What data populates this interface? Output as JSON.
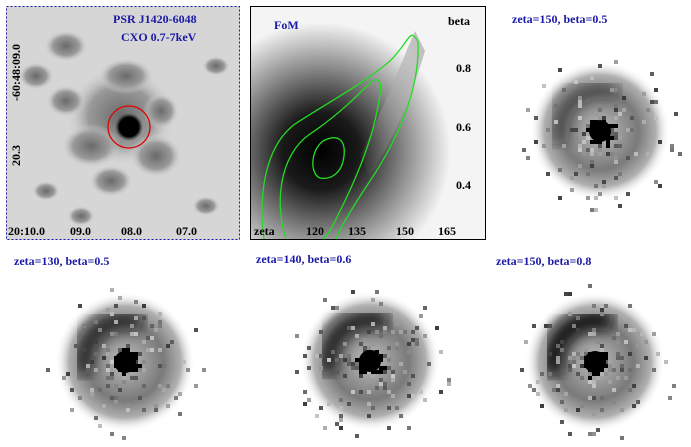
{
  "xray_panel": {
    "title_line1": "PSR J1420-6048",
    "title_line2": "CXO 0.7-7keV",
    "dec_label_top": "-60:48:09.0",
    "dec_label_bottom": "20.3",
    "ra_ticks": [
      "20:10.0",
      "09.0",
      "08.0",
      "07.0"
    ],
    "accent_color": "#1a1aa6",
    "circle_color": "#e00000"
  },
  "fom_panel": {
    "label": "FoM",
    "x_axis_name": "zeta",
    "y_axis_name": "beta",
    "x_ticks": [
      "120",
      "135",
      "150",
      "165"
    ],
    "y_ticks": [
      "0.8",
      "0.6",
      "0.4"
    ],
    "contour_color": "#22dd22"
  },
  "models": [
    {
      "label": "zeta=150, beta=0.5"
    },
    {
      "label": "zeta=130, beta=0.5"
    },
    {
      "label": "zeta=140, beta=0.6"
    },
    {
      "label": "zeta=150, beta=0.8"
    }
  ]
}
